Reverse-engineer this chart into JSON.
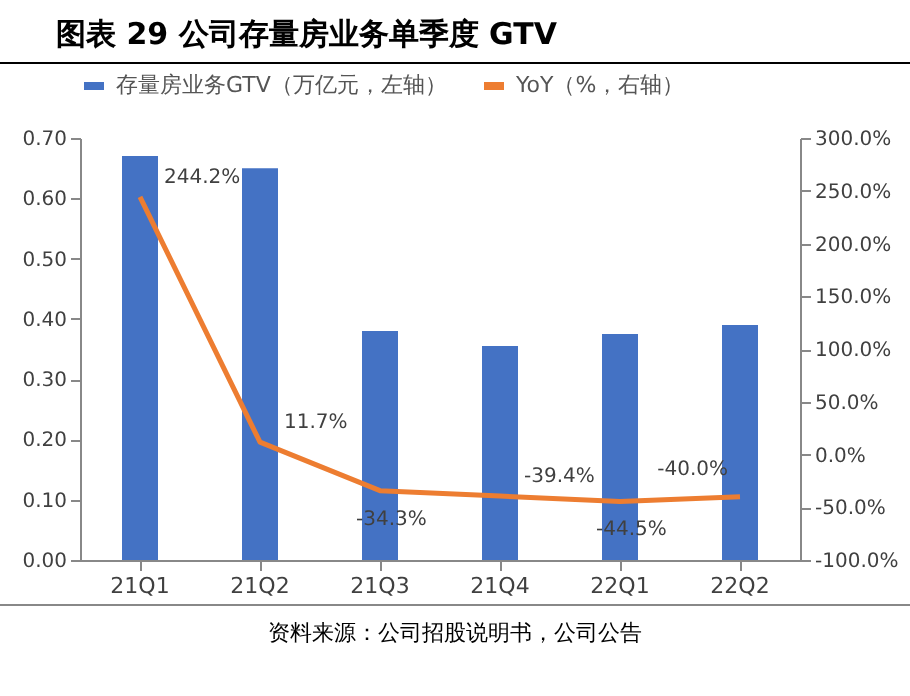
{
  "chart_data": {
    "type": "bar",
    "title": "图表 29  公司存量房业务单季度 GTV",
    "categories": [
      "21Q1",
      "21Q2",
      "21Q3",
      "21Q4",
      "22Q1",
      "22Q2"
    ],
    "series": [
      {
        "name": "存量房业务GTV（万亿元，左轴）",
        "color": "#4472c4",
        "values": [
          0.67,
          0.65,
          0.38,
          0.355,
          0.375,
          0.39
        ]
      },
      {
        "name": "YoY（%，右轴）",
        "type": "line",
        "axis": "y2",
        "color": "#ed7d31",
        "values": [
          244.2,
          11.7,
          -34.3,
          -39.4,
          -44.5,
          -40.0
        ],
        "value_labels": [
          "244.2%",
          "11.7%",
          "-34.3%",
          "-39.4%",
          "-44.5%",
          "-40.0%"
        ]
      }
    ],
    "ylim": [
      0,
      0.7
    ],
    "yticks": [
      {
        "value": 0,
        "label": "0.00"
      },
      {
        "value": 0.1,
        "label": "0.10"
      },
      {
        "value": 0.2,
        "label": "0.20"
      },
      {
        "value": 0.3,
        "label": "0.30"
      },
      {
        "value": 0.4,
        "label": "0.40"
      },
      {
        "value": 0.5,
        "label": "0.50"
      },
      {
        "value": 0.6,
        "label": "0.60"
      },
      {
        "value": 0.7,
        "label": "0.70"
      }
    ],
    "y2lim": [
      -100,
      300
    ],
    "y2ticks": [
      {
        "value": -100,
        "label": "-100.0%"
      },
      {
        "value": -50,
        "label": "-50.0%"
      },
      {
        "value": 0,
        "label": "0.0%"
      },
      {
        "value": 50,
        "label": "50.0%"
      },
      {
        "value": 100,
        "label": "100.0%"
      },
      {
        "value": 150,
        "label": "150.0%"
      },
      {
        "value": 200,
        "label": "200.0%"
      },
      {
        "value": 250,
        "label": "250.0%"
      },
      {
        "value": 300,
        "label": "300.0%"
      }
    ],
    "legend": "top",
    "grid": false,
    "annotations": [
      "资料来源：公司招股说明书，公司公告"
    ]
  }
}
